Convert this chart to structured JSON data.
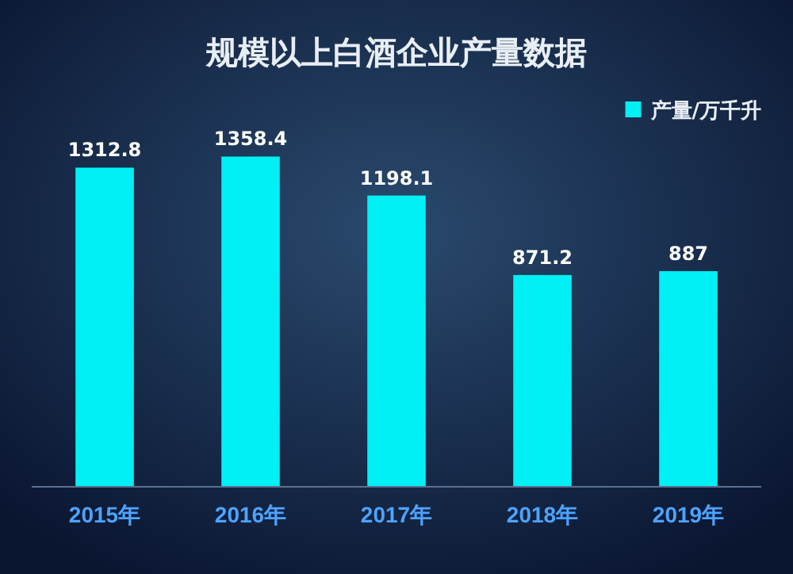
{
  "chart_data": {
    "type": "bar",
    "title": "规模以上白酒企业产量数据",
    "categories": [
      "2015年",
      "2016年",
      "2017年",
      "2018年",
      "2019年"
    ],
    "series": [
      {
        "name": "产量/万千升",
        "color": "#00f0f5",
        "values": [
          1312.8,
          1358.4,
          1198.1,
          871.2,
          887
        ]
      }
    ],
    "data_labels": true,
    "legend": "top right",
    "grid": false
  }
}
